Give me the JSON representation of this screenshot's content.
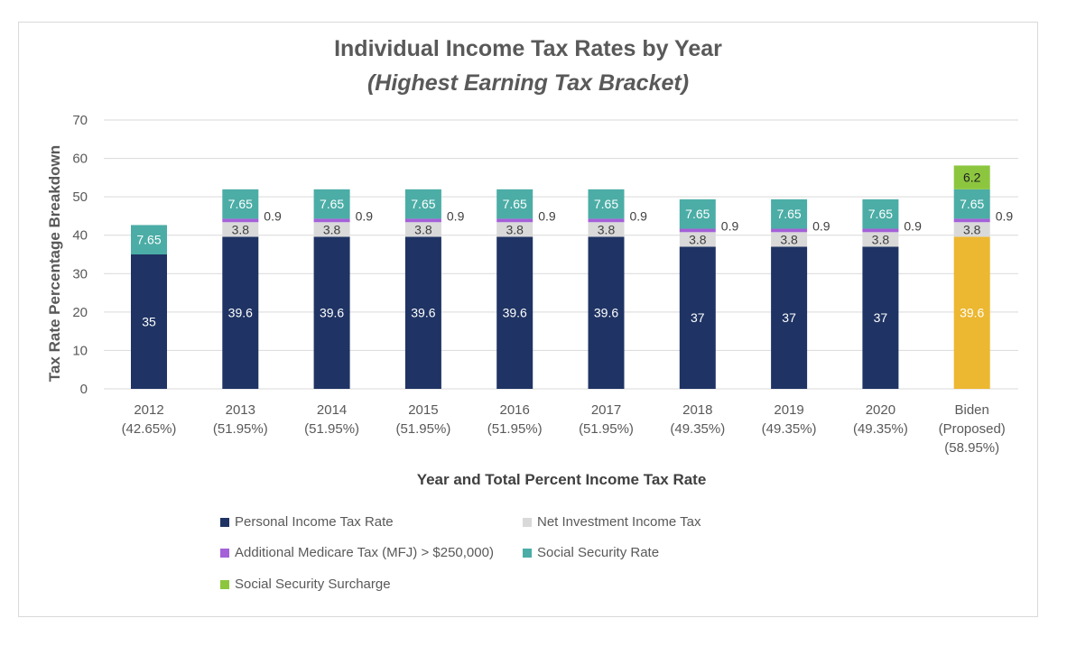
{
  "chart_data": {
    "type": "bar",
    "stacked": true,
    "title": "Individual Income Tax Rates by Year",
    "subtitle": "(Highest Earning Tax Bracket)",
    "xlabel": "Year and Total Percent Income Tax Rate",
    "ylabel": "Tax Rate Percentage Breakdown",
    "ylim": [
      0,
      70
    ],
    "yticks": [
      0,
      10,
      20,
      30,
      40,
      50,
      60,
      70
    ],
    "grid": true,
    "legend_position": "bottom",
    "categories": [
      [
        "2012",
        "(42.65%)"
      ],
      [
        "2013",
        "(51.95%)"
      ],
      [
        "2014",
        "(51.95%)"
      ],
      [
        "2015",
        "(51.95%)"
      ],
      [
        "2016",
        "(51.95%)"
      ],
      [
        "2017",
        "(51.95%)"
      ],
      [
        "2018",
        "(49.35%)"
      ],
      [
        "2019",
        "(49.35%)"
      ],
      [
        "2020",
        "(49.35%)"
      ],
      [
        "Biden",
        "(Proposed)",
        "(58.95%)"
      ]
    ],
    "series": [
      {
        "name": "Personal Income Tax Rate",
        "color": "#1f3464",
        "label_color": "#ffffff",
        "values": [
          35,
          39.6,
          39.6,
          39.6,
          39.6,
          39.6,
          37,
          37,
          37,
          39.6
        ],
        "colors_override": {
          "9": "#ecb731"
        }
      },
      {
        "name": "Net Investment Income Tax",
        "color": "#d9d9d9",
        "label_color": "#404040",
        "values": [
          0,
          3.8,
          3.8,
          3.8,
          3.8,
          3.8,
          3.8,
          3.8,
          3.8,
          3.8
        ]
      },
      {
        "name": "Additional Medicare Tax (MFJ) > $250,000)",
        "color": "#a461d8",
        "label_color": "#404040",
        "values": [
          0,
          0.9,
          0.9,
          0.9,
          0.9,
          0.9,
          0.9,
          0.9,
          0.9,
          0.9
        ],
        "label_outside": true
      },
      {
        "name": "Social Security Rate",
        "color": "#4bada6",
        "label_color": "#ffffff",
        "values": [
          7.65,
          7.65,
          7.65,
          7.65,
          7.65,
          7.65,
          7.65,
          7.65,
          7.65,
          7.65
        ]
      },
      {
        "name": "Social Security Surcharge",
        "color": "#8cc63f",
        "label_color": "#222222",
        "values": [
          0,
          0,
          0,
          0,
          0,
          0,
          0,
          0,
          0,
          6.2
        ]
      }
    ]
  }
}
